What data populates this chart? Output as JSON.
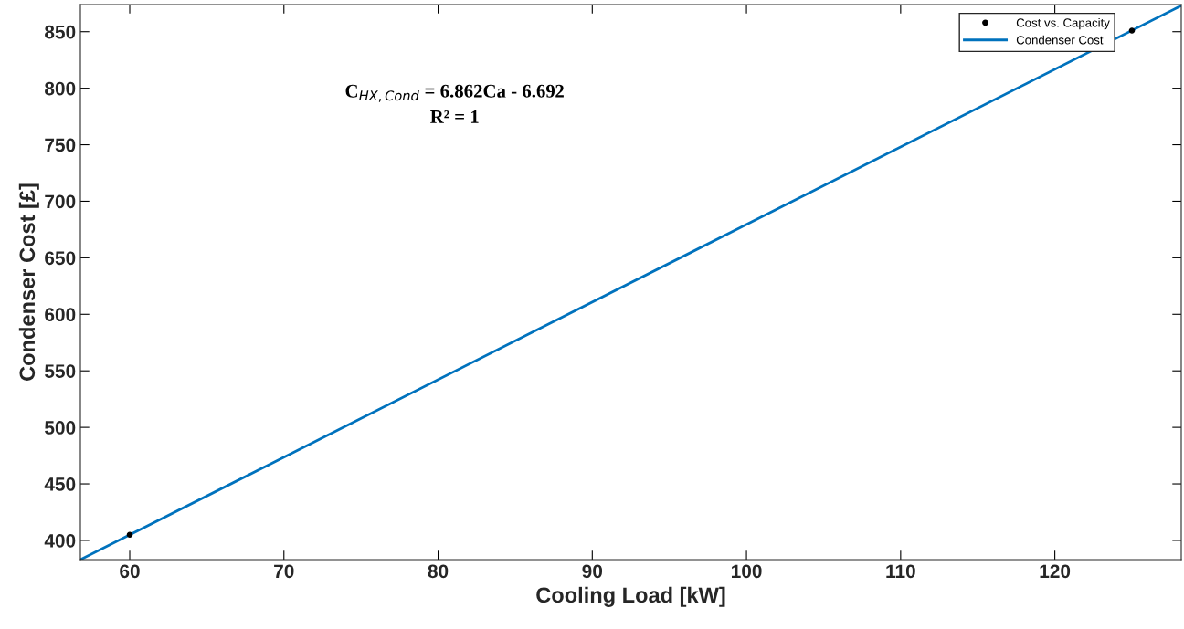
{
  "chart_data": {
    "type": "line",
    "xlabel": "Cooling Load [kW]",
    "ylabel": "Condenser Cost [£]",
    "annotations": [
      "C$_{HX,Cond}$ = 6.862Ca - 6.692",
      "R² = 1"
    ],
    "series": [
      {
        "name": "Cost vs. Capacity",
        "type": "scatter",
        "color": "#000000",
        "x": [
          60,
          125
        ],
        "values": [
          405,
          851
        ],
        "marker": "circle"
      },
      {
        "name": "Condenser Cost",
        "color": "#0072bd",
        "x": [
          56.8,
          128.2
        ],
        "values": [
          383,
          873
        ]
      }
    ],
    "xlim": [
      56.8,
      128.2
    ],
    "xticks": [
      60,
      70,
      80,
      90,
      100,
      110,
      120
    ],
    "ylim": [
      383,
      874
    ],
    "yticks": [
      400,
      450,
      500,
      550,
      600,
      650,
      700,
      750,
      800,
      850
    ],
    "grid": false,
    "legend": "top right"
  }
}
